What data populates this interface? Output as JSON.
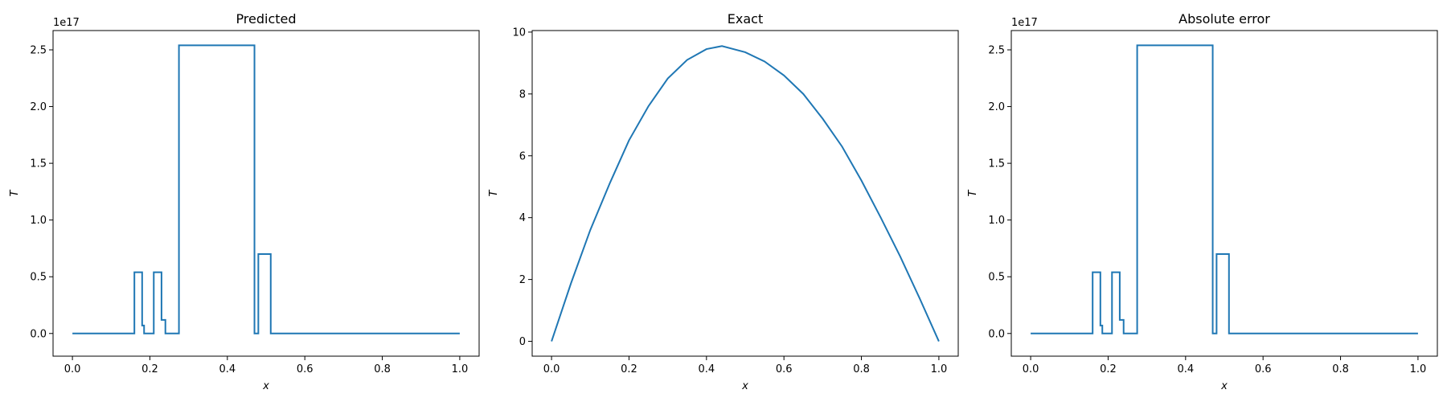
{
  "figure": {
    "line_color": "#1f77b4"
  },
  "chart_data": [
    {
      "type": "line",
      "title": "Predicted",
      "xlabel": "x",
      "ylabel": "T",
      "y_offset_label": "1e17",
      "xlim": [
        -0.05,
        1.05
      ],
      "ylim": [
        -0.2,
        2.67
      ],
      "xticks": [
        "0.0",
        "0.2",
        "0.4",
        "0.6",
        "0.8",
        "1.0"
      ],
      "yticks": [
        "0.0",
        "0.5",
        "1.0",
        "1.5",
        "2.0",
        "2.5"
      ],
      "series": [
        {
          "x": [
            0.0,
            0.16,
            0.16,
            0.18,
            0.18,
            0.185,
            0.185,
            0.21,
            0.21,
            0.23,
            0.23,
            0.24,
            0.24,
            0.275,
            0.275,
            0.47,
            0.47,
            0.48,
            0.48,
            0.512,
            0.512,
            1.0
          ],
          "y": [
            0.0,
            0.0,
            0.54,
            0.54,
            0.07,
            0.07,
            0.0,
            0.0,
            0.54,
            0.54,
            0.12,
            0.12,
            0.0,
            0.0,
            2.54,
            2.54,
            0.0,
            0.0,
            0.7,
            0.7,
            0.0,
            0.0
          ]
        }
      ]
    },
    {
      "type": "line",
      "title": "Exact",
      "xlabel": "x",
      "ylabel": "T",
      "y_offset_label": "",
      "xlim": [
        -0.05,
        1.05
      ],
      "ylim": [
        -0.48,
        10.05
      ],
      "xticks": [
        "0.0",
        "0.2",
        "0.4",
        "0.6",
        "0.8",
        "1.0"
      ],
      "yticks": [
        "0",
        "2",
        "4",
        "6",
        "8",
        "10"
      ],
      "series": [
        {
          "x": [
            0.0,
            0.05,
            0.1,
            0.15,
            0.2,
            0.25,
            0.3,
            0.35,
            0.4,
            0.44,
            0.5,
            0.55,
            0.6,
            0.65,
            0.7,
            0.75,
            0.8,
            0.85,
            0.9,
            0.95,
            1.0
          ],
          "y": [
            0.0,
            1.87,
            3.6,
            5.1,
            6.5,
            7.6,
            8.5,
            9.1,
            9.45,
            9.55,
            9.35,
            9.05,
            8.6,
            8.0,
            7.2,
            6.3,
            5.2,
            4.0,
            2.75,
            1.4,
            0.0
          ]
        }
      ]
    },
    {
      "type": "line",
      "title": "Absolute error",
      "xlabel": "x",
      "ylabel": "T",
      "y_offset_label": "1e17",
      "xlim": [
        -0.05,
        1.05
      ],
      "ylim": [
        -0.2,
        2.67
      ],
      "xticks": [
        "0.0",
        "0.2",
        "0.4",
        "0.6",
        "0.8",
        "1.0"
      ],
      "yticks": [
        "0.0",
        "0.5",
        "1.0",
        "1.5",
        "2.0",
        "2.5"
      ],
      "series": [
        {
          "x": [
            0.0,
            0.16,
            0.16,
            0.18,
            0.18,
            0.185,
            0.185,
            0.21,
            0.21,
            0.23,
            0.23,
            0.24,
            0.24,
            0.275,
            0.275,
            0.47,
            0.47,
            0.48,
            0.48,
            0.512,
            0.512,
            1.0
          ],
          "y": [
            0.0,
            0.0,
            0.54,
            0.54,
            0.07,
            0.07,
            0.0,
            0.0,
            0.54,
            0.54,
            0.12,
            0.12,
            0.0,
            0.0,
            2.54,
            2.54,
            0.0,
            0.0,
            0.7,
            0.7,
            0.0,
            0.0
          ]
        }
      ]
    }
  ]
}
